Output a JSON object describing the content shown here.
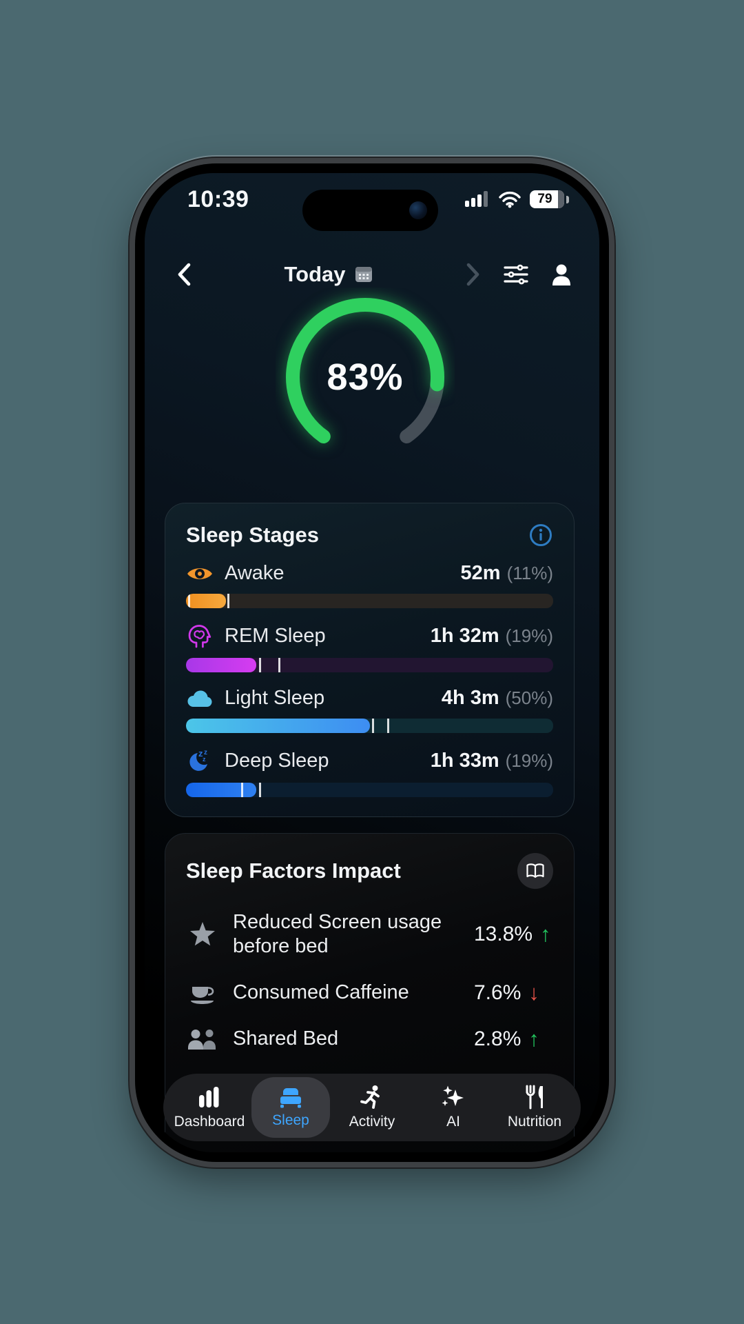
{
  "status_bar": {
    "time": "10:39",
    "battery_percent": "79"
  },
  "header": {
    "title": "Today"
  },
  "sleep_score": {
    "percent": 83,
    "label": "83%",
    "arc_start_deg": 215,
    "arc_span_deg": 290,
    "color_active": "#2fd05f",
    "color_rest": "#454e57"
  },
  "sleep_stages": {
    "title": "Sleep Stages",
    "stages": [
      {
        "label": "Awake",
        "duration": "52m",
        "percent_label": "(11%)",
        "percent": 10.8,
        "bar_from": "#ef8f1f",
        "bar_to": "#f7a93e",
        "track": "#282522",
        "ticks": [
          0.6,
          11.2
        ]
      },
      {
        "label": "REM Sleep",
        "duration": "1h 32m",
        "percent_label": "(19%)",
        "percent": 19.2,
        "bar_from": "#a838e8",
        "bar_to": "#d63cf0",
        "track": "#221531",
        "ticks": [
          19.8,
          25.2
        ]
      },
      {
        "label": "Light Sleep",
        "duration": "4h 3m",
        "percent_label": "(50%)",
        "percent": 50,
        "bar_from": "#4cc6e8",
        "bar_to": "#3d8df2",
        "track": "#0f2c34",
        "ticks": [
          50.6,
          54.8
        ]
      },
      {
        "label": "Deep Sleep",
        "duration": "1h 33m",
        "percent_label": "(19%)",
        "percent": 19.2,
        "bar_from": "#1566ea",
        "bar_to": "#2f80f0",
        "track": "#0b1e30",
        "ticks": [
          15.0,
          19.9
        ]
      }
    ]
  },
  "sleep_factors": {
    "title": "Sleep Factors Impact",
    "factors": [
      {
        "label": "Reduced Screen usage before bed",
        "value": "13.8%",
        "direction": "up",
        "arrow": "↑",
        "color": "#22c55e"
      },
      {
        "label": "Consumed Caffeine",
        "value": "7.6%",
        "direction": "down",
        "arrow": "↓",
        "color": "#e8544a"
      },
      {
        "label": "Shared Bed",
        "value": "2.8%",
        "direction": "up",
        "arrow": "↑",
        "color": "#22c55e"
      }
    ]
  },
  "tab_bar": {
    "active_color": "#3ea6ff",
    "tabs": [
      {
        "label": "Dashboard"
      },
      {
        "label": "Sleep",
        "active": true
      },
      {
        "label": "Activity"
      },
      {
        "label": "AI"
      },
      {
        "label": "Nutrition"
      }
    ]
  }
}
